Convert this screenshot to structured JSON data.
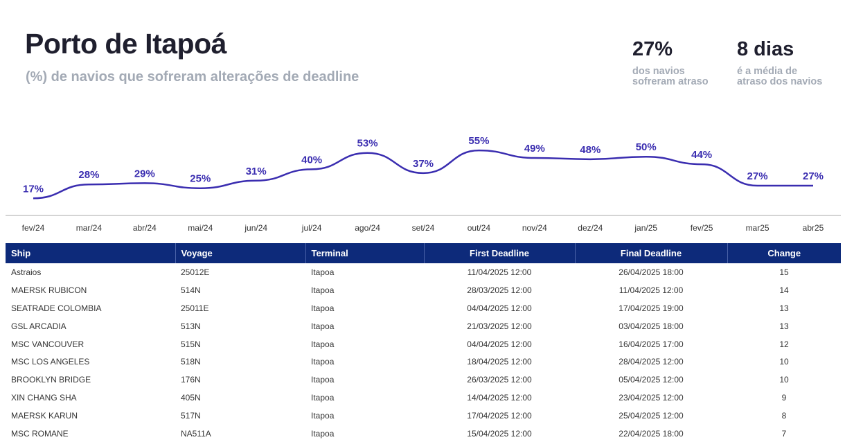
{
  "header": {
    "title": "Porto de Itapoá",
    "subtitle": "(%) de navios que sofreram alterações de deadline"
  },
  "kpis": [
    {
      "value": "27%",
      "label_line1": "dos navios",
      "label_line2": "sofreram atraso"
    },
    {
      "value": "8 dias",
      "label_line1": "é a média de",
      "label_line2": "atraso dos navios"
    }
  ],
  "chart_data": {
    "type": "line",
    "categories": [
      "fev/24",
      "mar/24",
      "abr/24",
      "mai/24",
      "jun/24",
      "jul/24",
      "ago/24",
      "set/24",
      "out/24",
      "nov/24",
      "dez/24",
      "jan/25",
      "fev/25",
      "mar25",
      "abr25"
    ],
    "series": [
      {
        "values": [
          17,
          28,
          29,
          25,
          31,
          40,
          53,
          37,
          55,
          49,
          48,
          50,
          44,
          27,
          27
        ]
      }
    ],
    "data_labels": [
      "17%",
      "28%",
      "29%",
      "25%",
      "31%",
      "40%",
      "53%",
      "37%",
      "55%",
      "49%",
      "48%",
      "50%",
      "44%",
      "27%",
      "27%"
    ],
    "ylim": [
      10,
      60
    ],
    "grid": false,
    "line_color": "#3a2db0",
    "label_color": "#3a2db0"
  },
  "table": {
    "columns": [
      "Ship",
      "Voyage",
      "Terminal",
      "First Deadline",
      "Final Deadline",
      "Change"
    ],
    "rows": [
      [
        "Astraios",
        "25012E",
        "Itapoa",
        "11/04/2025 12:00",
        "26/04/2025 18:00",
        "15"
      ],
      [
        "MAERSK RUBICON",
        "514N",
        "Itapoa",
        "28/03/2025 12:00",
        "11/04/2025 12:00",
        "14"
      ],
      [
        "SEATRADE COLOMBIA",
        "25011E",
        "Itapoa",
        "04/04/2025 12:00",
        "17/04/2025 19:00",
        "13"
      ],
      [
        "GSL ARCADIA",
        "513N",
        "Itapoa",
        "21/03/2025 12:00",
        "03/04/2025 18:00",
        "13"
      ],
      [
        "MSC VANCOUVER",
        "515N",
        "Itapoa",
        "04/04/2025 12:00",
        "16/04/2025 17:00",
        "12"
      ],
      [
        "MSC LOS ANGELES",
        "518N",
        "Itapoa",
        "18/04/2025 12:00",
        "28/04/2025 12:00",
        "10"
      ],
      [
        "BROOKLYN BRIDGE",
        "176N",
        "Itapoa",
        "26/03/2025 12:00",
        "05/04/2025 12:00",
        "10"
      ],
      [
        "XIN CHANG SHA",
        "405N",
        "Itapoa",
        "14/04/2025 12:00",
        "23/04/2025 12:00",
        "9"
      ],
      [
        "MAERSK KARUN",
        "517N",
        "Itapoa",
        "17/04/2025 12:00",
        "25/04/2025 12:00",
        "8"
      ],
      [
        "MSC ROMANE",
        "NA511A",
        "Itapoa",
        "15/04/2025 12:00",
        "22/04/2025 18:00",
        "7"
      ]
    ]
  }
}
